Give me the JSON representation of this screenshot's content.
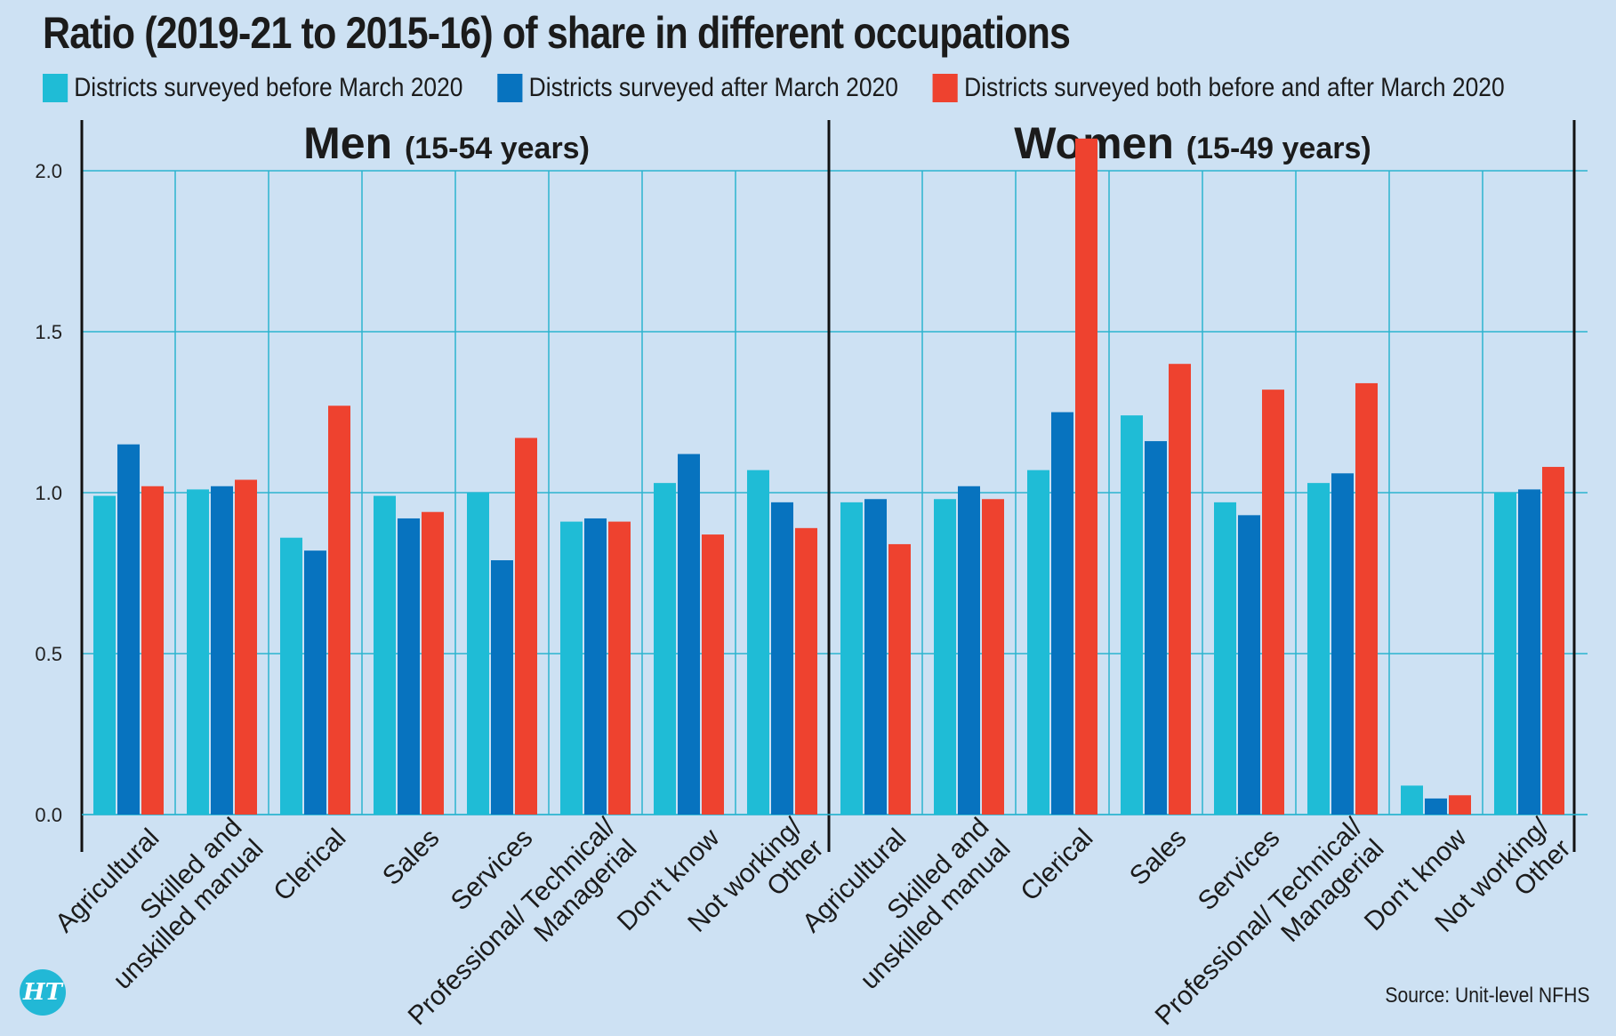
{
  "colors": {
    "background": "#cde1f3",
    "grid": "#2cb4cf",
    "before": "#1fbcd6",
    "after": "#0773bf",
    "both": "#ee422f",
    "divider": "#111111"
  },
  "logo_text": "HT",
  "source": "Source: Unit-level NFHS",
  "chart_data": {
    "type": "bar",
    "title": "Ratio (2019-21 to 2015-16) of share in different occupations",
    "ylim": [
      0,
      2.1
    ],
    "yticks": [
      "0.0",
      "0.5",
      "1.0",
      "1.5",
      "2.0"
    ],
    "legend": [
      {
        "key": "before",
        "label": "Districts surveyed before March 2020"
      },
      {
        "key": "after",
        "label": "Districts surveyed after March 2020"
      },
      {
        "key": "both",
        "label": "Districts surveyed both before and after March 2020"
      }
    ],
    "panels": [
      {
        "title": "Men",
        "subtitle": "(15-54 years)",
        "categories": [
          [
            "Agricultural"
          ],
          [
            "Skilled and",
            "unskilled manual"
          ],
          [
            "Clerical"
          ],
          [
            "Sales"
          ],
          [
            "Services"
          ],
          [
            "Professional/ Technical/",
            "Managerial"
          ],
          [
            "Don't know"
          ],
          [
            "Not working/",
            "Other"
          ]
        ],
        "series": [
          {
            "key": "before",
            "name": "Districts surveyed before March 2020",
            "values": [
              0.99,
              1.01,
              0.86,
              0.99,
              1.0,
              0.91,
              1.03,
              1.07
            ]
          },
          {
            "key": "after",
            "name": "Districts surveyed after March 2020",
            "values": [
              1.15,
              1.02,
              0.82,
              0.92,
              0.79,
              0.92,
              1.12,
              0.97
            ]
          },
          {
            "key": "both",
            "name": "Districts surveyed both before and after March 2020",
            "values": [
              1.02,
              1.04,
              1.27,
              0.94,
              1.17,
              0.91,
              0.87,
              0.89
            ]
          }
        ]
      },
      {
        "title": "Women",
        "subtitle": "(15-49 years)",
        "categories": [
          [
            "Agricultural"
          ],
          [
            "Skilled and",
            "unskilled manual"
          ],
          [
            "Clerical"
          ],
          [
            "Sales"
          ],
          [
            "Services"
          ],
          [
            "Professional/ Technical/",
            "Managerial"
          ],
          [
            "Don't know"
          ],
          [
            "Not working/",
            "Other"
          ]
        ],
        "series": [
          {
            "key": "before",
            "name": "Districts surveyed before March 2020",
            "values": [
              0.97,
              0.98,
              1.07,
              1.24,
              0.97,
              1.03,
              0.09,
              1.0
            ]
          },
          {
            "key": "after",
            "name": "Districts surveyed after March 2020",
            "values": [
              0.98,
              1.02,
              1.25,
              1.16,
              0.93,
              1.06,
              0.05,
              1.01
            ]
          },
          {
            "key": "both",
            "name": "Districts surveyed both before and after March 2020",
            "values": [
              0.84,
              0.98,
              2.1,
              1.4,
              1.32,
              1.34,
              0.06,
              1.08
            ]
          }
        ]
      }
    ]
  }
}
